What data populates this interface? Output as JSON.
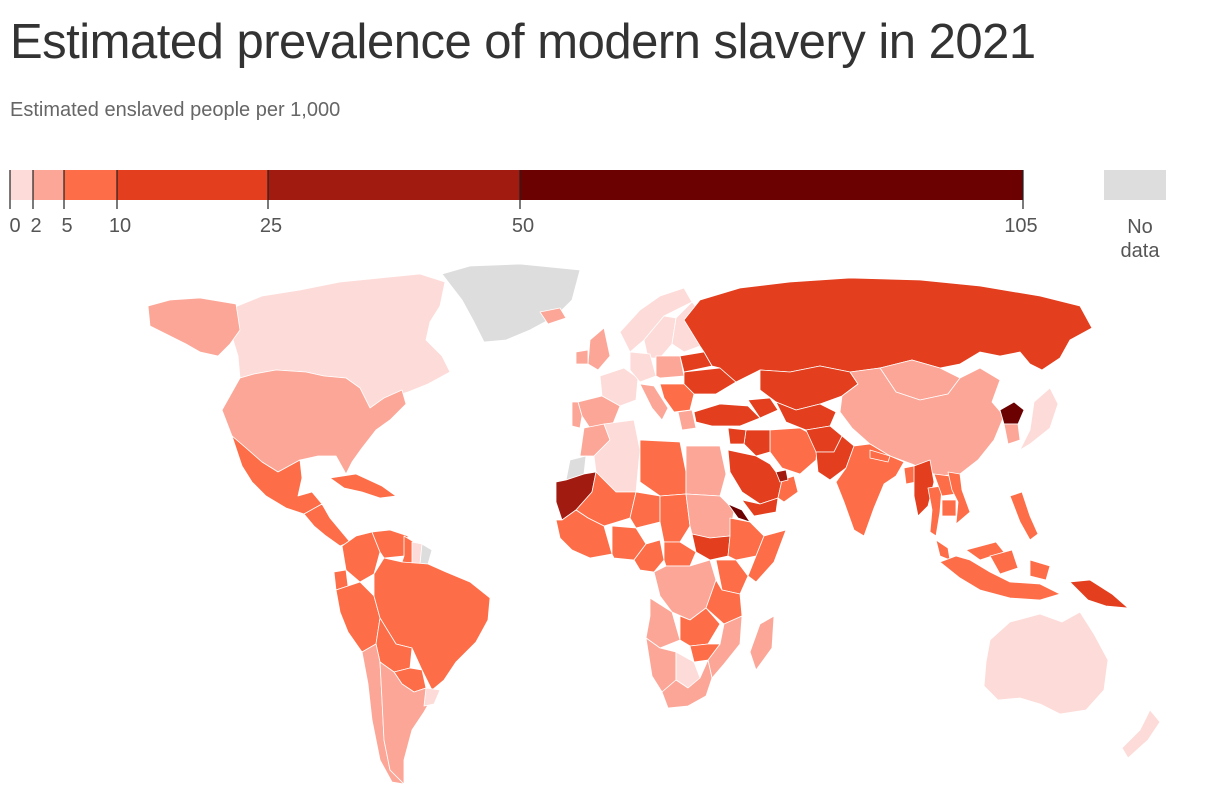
{
  "title": "Estimated prevalence of modern slavery in 2021",
  "subtitle": "Estimated enslaved people per 1,000",
  "legend": {
    "breaks": [
      0,
      2,
      5,
      10,
      25,
      50,
      105
    ],
    "colors": [
      "#fddbd8",
      "#fca697",
      "#fd6d48",
      "#e33e1d",
      "#a11b10",
      "#6b0101"
    ],
    "no_data_color": "#dddddd",
    "no_data_label_1": "No",
    "no_data_label_2": "data"
  },
  "map_data": {
    "regions": [
      {
        "name": "Canada",
        "class": 0
      },
      {
        "name": "Greenland",
        "class": "nodata"
      },
      {
        "name": "Alaska",
        "class": 1
      },
      {
        "name": "United States",
        "class": 1
      },
      {
        "name": "Mexico",
        "class": 2
      },
      {
        "name": "Central America",
        "class": 2
      },
      {
        "name": "Caribbean",
        "class": 2
      },
      {
        "name": "Colombia",
        "class": 2
      },
      {
        "name": "Venezuela",
        "class": 2
      },
      {
        "name": "Guyana",
        "class": 2
      },
      {
        "name": "Suriname",
        "class": 0
      },
      {
        "name": "French Guiana",
        "class": "nodata"
      },
      {
        "name": "Ecuador",
        "class": 2
      },
      {
        "name": "Peru",
        "class": 2
      },
      {
        "name": "Brazil",
        "class": 2
      },
      {
        "name": "Bolivia",
        "class": 2
      },
      {
        "name": "Paraguay",
        "class": 2
      },
      {
        "name": "Chile",
        "class": 1
      },
      {
        "name": "Argentina",
        "class": 1
      },
      {
        "name": "Uruguay",
        "class": 0
      },
      {
        "name": "United Kingdom",
        "class": 1
      },
      {
        "name": "Ireland",
        "class": 1
      },
      {
        "name": "Iceland",
        "class": 1
      },
      {
        "name": "Norway",
        "class": 0
      },
      {
        "name": "Sweden",
        "class": 0
      },
      {
        "name": "Finland",
        "class": 0
      },
      {
        "name": "France",
        "class": 0
      },
      {
        "name": "Spain",
        "class": 1
      },
      {
        "name": "Portugal",
        "class": 1
      },
      {
        "name": "Germany",
        "class": 0
      },
      {
        "name": "Italy",
        "class": 1
      },
      {
        "name": "Poland",
        "class": 1
      },
      {
        "name": "Ukraine",
        "class": 3
      },
      {
        "name": "Belarus",
        "class": 3
      },
      {
        "name": "Balkans",
        "class": 2
      },
      {
        "name": "Greece",
        "class": 1
      },
      {
        "name": "Russia",
        "class": 3
      },
      {
        "name": "Kazakhstan",
        "class": 3
      },
      {
        "name": "Mongolia",
        "class": 1
      },
      {
        "name": "China",
        "class": 1
      },
      {
        "name": "North Korea",
        "class": 5
      },
      {
        "name": "South Korea",
        "class": 1
      },
      {
        "name": "Japan",
        "class": 0
      },
      {
        "name": "Turkey",
        "class": 3
      },
      {
        "name": "Caucasus",
        "class": 3
      },
      {
        "name": "Central Asia",
        "class": 3
      },
      {
        "name": "Iran",
        "class": 2
      },
      {
        "name": "Iraq",
        "class": 3
      },
      {
        "name": "Syria",
        "class": 3
      },
      {
        "name": "Saudi Arabia",
        "class": 3
      },
      {
        "name": "Yemen",
        "class": 3
      },
      {
        "name": "Oman",
        "class": 2
      },
      {
        "name": "UAE",
        "class": 4
      },
      {
        "name": "Afghanistan",
        "class": 3
      },
      {
        "name": "Pakistan",
        "class": 3
      },
      {
        "name": "India",
        "class": 2
      },
      {
        "name": "Nepal",
        "class": 2
      },
      {
        "name": "Bangladesh",
        "class": 2
      },
      {
        "name": "Myanmar",
        "class": 3
      },
      {
        "name": "Thailand",
        "class": 2
      },
      {
        "name": "Laos",
        "class": 2
      },
      {
        "name": "Vietnam",
        "class": 2
      },
      {
        "name": "Cambodia",
        "class": 2
      },
      {
        "name": "Malaysia",
        "class": 2
      },
      {
        "name": "Indonesia",
        "class": 2
      },
      {
        "name": "Philippines",
        "class": 2
      },
      {
        "name": "Papua New Guinea",
        "class": 3
      },
      {
        "name": "Australia",
        "class": 0
      },
      {
        "name": "New Zealand",
        "class": 0
      },
      {
        "name": "Morocco",
        "class": 1
      },
      {
        "name": "Western Sahara",
        "class": "nodata"
      },
      {
        "name": "Algeria",
        "class": 0
      },
      {
        "name": "Libya",
        "class": 2
      },
      {
        "name": "Egypt",
        "class": 1
      },
      {
        "name": "Mauritania",
        "class": 4
      },
      {
        "name": "Mali",
        "class": 2
      },
      {
        "name": "Niger",
        "class": 2
      },
      {
        "name": "Chad",
        "class": 2
      },
      {
        "name": "Sudan",
        "class": 1
      },
      {
        "name": "South Sudan",
        "class": 3
      },
      {
        "name": "Eritrea",
        "class": 5
      },
      {
        "name": "Ethiopia",
        "class": 2
      },
      {
        "name": "Somalia",
        "class": 2
      },
      {
        "name": "West Africa",
        "class": 2
      },
      {
        "name": "Nigeria",
        "class": 2
      },
      {
        "name": "Cameroon",
        "class": 2
      },
      {
        "name": "Central African Republic",
        "class": 2
      },
      {
        "name": "DR Congo",
        "class": 1
      },
      {
        "name": "Kenya",
        "class": 2
      },
      {
        "name": "Tanzania",
        "class": 2
      },
      {
        "name": "Angola",
        "class": 1
      },
      {
        "name": "Zambia",
        "class": 2
      },
      {
        "name": "Mozambique",
        "class": 1
      },
      {
        "name": "Zimbabwe",
        "class": 2
      },
      {
        "name": "Namibia",
        "class": 1
      },
      {
        "name": "Botswana",
        "class": 0
      },
      {
        "name": "South Africa",
        "class": 1
      },
      {
        "name": "Madagascar",
        "class": 1
      }
    ]
  }
}
